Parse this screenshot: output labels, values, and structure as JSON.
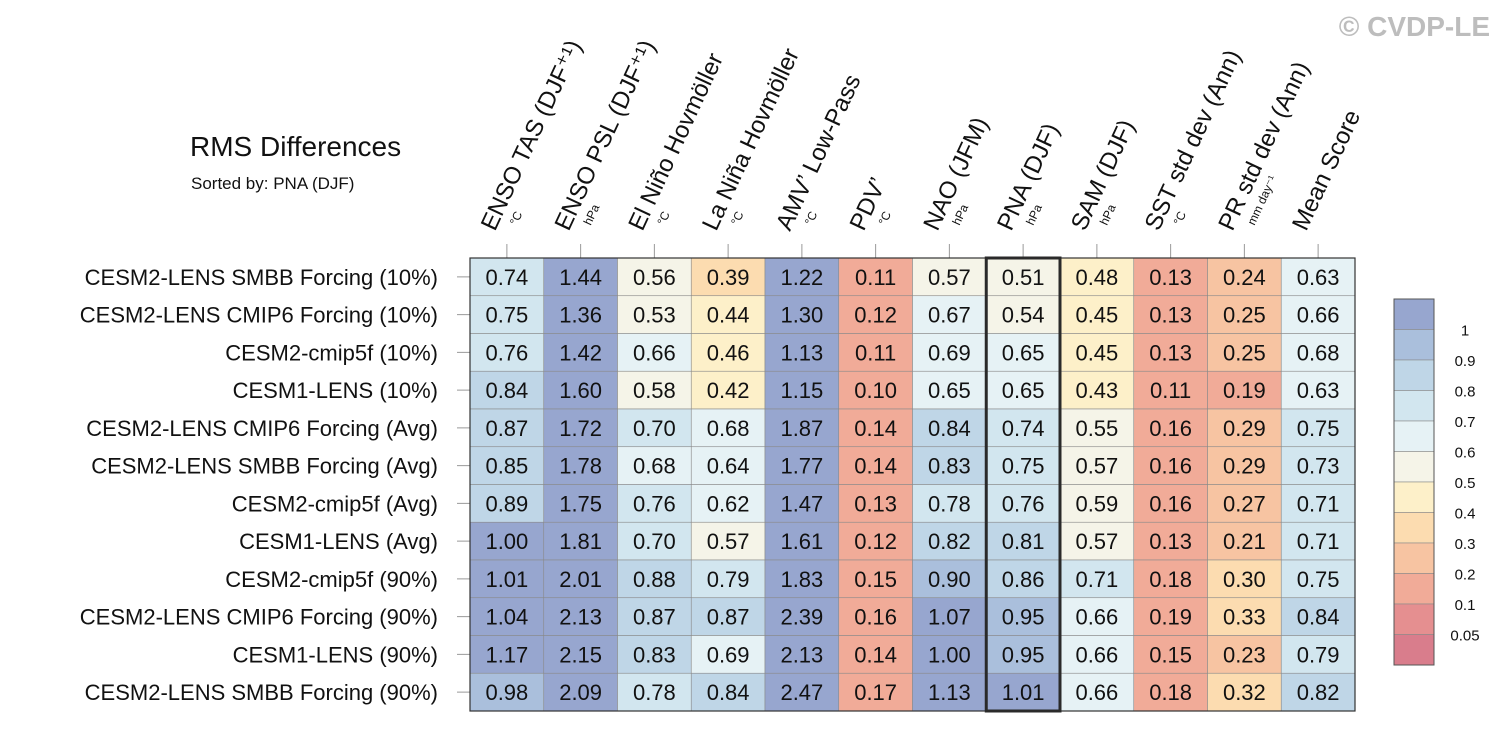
{
  "watermark": "© CVDP-LE",
  "chart_data": {
    "type": "heatmap",
    "title": "RMS Differences",
    "subtitle": "Sorted by: PNA (DJF)",
    "columns": [
      {
        "label": "ENSO TAS (DJF⁺¹)",
        "unit": "°C"
      },
      {
        "label": "ENSO PSL (DJF⁺¹)",
        "unit": "hPa"
      },
      {
        "label": "El Niño Hovmöller",
        "unit": "°C"
      },
      {
        "label": "La Niña Hovmöller",
        "unit": "°C"
      },
      {
        "label": "AMV’ Low-Pass",
        "unit": "°C"
      },
      {
        "label": "PDV’",
        "unit": "°C"
      },
      {
        "label": "NAO (JFM)",
        "unit": "hPa"
      },
      {
        "label": "PNA (DJF)",
        "unit": "hPa"
      },
      {
        "label": "SAM (DJF)",
        "unit": "hPa"
      },
      {
        "label": "SST std dev (Ann)",
        "unit": "°C"
      },
      {
        "label": "PR std dev (Ann)",
        "unit": "mm day⁻¹"
      },
      {
        "label": "Mean Score",
        "unit": ""
      }
    ],
    "rows": [
      "CESM2-LENS SMBB Forcing (10%)",
      "CESM2-LENS CMIP6 Forcing (10%)",
      "CESM2-cmip5f (10%)",
      "CESM1-LENS (10%)",
      "CESM2-LENS CMIP6 Forcing (Avg)",
      "CESM2-LENS SMBB Forcing (Avg)",
      "CESM2-cmip5f (Avg)",
      "CESM1-LENS (Avg)",
      "CESM2-cmip5f (90%)",
      "CESM2-LENS CMIP6 Forcing (90%)",
      "CESM1-LENS (90%)",
      "CESM2-LENS SMBB Forcing (90%)"
    ],
    "values": [
      [
        "0.74",
        "1.44",
        "0.56",
        "0.39",
        "1.22",
        "0.11",
        "0.57",
        "0.51",
        "0.48",
        "0.13",
        "0.24",
        "0.63"
      ],
      [
        "0.75",
        "1.36",
        "0.53",
        "0.44",
        "1.30",
        "0.12",
        "0.67",
        "0.54",
        "0.45",
        "0.13",
        "0.25",
        "0.66"
      ],
      [
        "0.76",
        "1.42",
        "0.66",
        "0.46",
        "1.13",
        "0.11",
        "0.69",
        "0.65",
        "0.45",
        "0.13",
        "0.25",
        "0.68"
      ],
      [
        "0.84",
        "1.60",
        "0.58",
        "0.42",
        "1.15",
        "0.10",
        "0.65",
        "0.65",
        "0.43",
        "0.11",
        "0.19",
        "0.63"
      ],
      [
        "0.87",
        "1.72",
        "0.70",
        "0.68",
        "1.87",
        "0.14",
        "0.84",
        "0.74",
        "0.55",
        "0.16",
        "0.29",
        "0.75"
      ],
      [
        "0.85",
        "1.78",
        "0.68",
        "0.64",
        "1.77",
        "0.14",
        "0.83",
        "0.75",
        "0.57",
        "0.16",
        "0.29",
        "0.73"
      ],
      [
        "0.89",
        "1.75",
        "0.76",
        "0.62",
        "1.47",
        "0.13",
        "0.78",
        "0.76",
        "0.59",
        "0.16",
        "0.27",
        "0.71"
      ],
      [
        "1.00",
        "1.81",
        "0.70",
        "0.57",
        "1.61",
        "0.12",
        "0.82",
        "0.81",
        "0.57",
        "0.13",
        "0.21",
        "0.71"
      ],
      [
        "1.01",
        "2.01",
        "0.88",
        "0.79",
        "1.83",
        "0.15",
        "0.90",
        "0.86",
        "0.71",
        "0.18",
        "0.30",
        "0.75"
      ],
      [
        "1.04",
        "2.13",
        "0.87",
        "0.87",
        "2.39",
        "0.16",
        "1.07",
        "0.95",
        "0.66",
        "0.19",
        "0.33",
        "0.84"
      ],
      [
        "1.17",
        "2.15",
        "0.83",
        "0.69",
        "2.13",
        "0.14",
        "1.00",
        "0.95",
        "0.66",
        "0.15",
        "0.23",
        "0.79"
      ],
      [
        "0.98",
        "2.09",
        "0.78",
        "0.84",
        "2.47",
        "0.17",
        "1.13",
        "1.01",
        "0.66",
        "0.18",
        "0.32",
        "0.82"
      ]
    ],
    "sorted_column_index": 7,
    "legend": {
      "placement": "right",
      "labels": [
        "1",
        "0.9",
        "0.8",
        "0.7",
        "0.6",
        "0.5",
        "0.4",
        "0.3",
        "0.2",
        "0.1",
        "0.05"
      ],
      "colors": [
        "#97a6cf",
        "#aabfdc",
        "#bfd6e7",
        "#d2e6ef",
        "#e6f2f5",
        "#f5f4e8",
        "#fdf0c9",
        "#fcdcb0",
        "#f7c4a2",
        "#f1ab98",
        "#e58f90",
        "#d97d8c"
      ]
    }
  }
}
